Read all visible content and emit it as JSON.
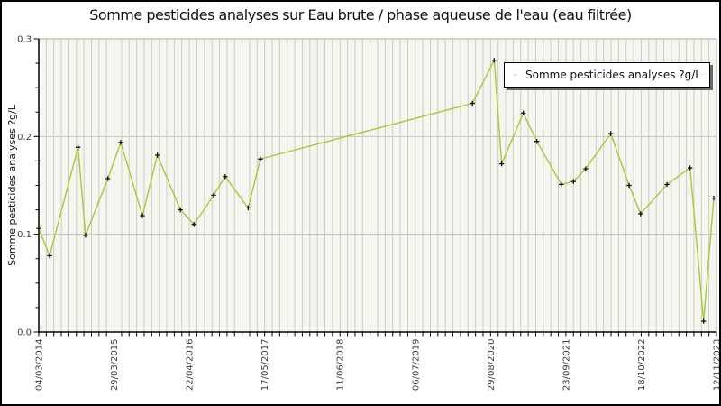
{
  "title": "Somme pesticides analyses sur Eau brute / phase aqueuse de l'eau (eau filtrée)",
  "y_axis": {
    "label": "Somme pesticides analyses ?g/L",
    "tick_labels": [
      "0.0",
      "0.1",
      "0.2",
      "0.3"
    ],
    "minor_step": 0.025
  },
  "x_axis": {
    "tick_labels": [
      "04/03/2014",
      "29/03/2015",
      "22/04/2016",
      "17/05/2017",
      "11/06/2018",
      "06/07/2019",
      "29/08/2020",
      "23/09/2021",
      "18/10/2022",
      "12/11/2023"
    ],
    "minor_ticks_per_label_interval": 10
  },
  "legend": {
    "label": "Somme pesticides analyses ?g/L",
    "position": "top-right"
  },
  "colors": {
    "line": "#a3c93a",
    "marker": "#000000",
    "plot_bg": "#f6f6f0",
    "grid_vertical": "#ccccc2",
    "grid_horizontal": "#c6c6c0",
    "spine_dark": "#000000",
    "spine_light": "#aaaaa2",
    "tick_label": "#3c3c3c",
    "legend_shadow": "#6a6a6a"
  },
  "chart_data": {
    "type": "line",
    "title": "Somme pesticides analyses sur Eau brute / phase aqueuse de l'eau (eau filtrée)",
    "xlabel": "",
    "ylabel": "Somme pesticides analyses ?g/L",
    "ylim": [
      0,
      0.3
    ],
    "y_major_ticks": [
      0,
      0.1,
      0.2,
      0.3
    ],
    "y_minor_step": 0.025,
    "x_tick_labels": [
      "04/03/2014",
      "29/03/2015",
      "22/04/2016",
      "17/05/2017",
      "11/06/2018",
      "06/07/2019",
      "29/08/2020",
      "23/09/2021",
      "18/10/2022",
      "12/11/2023"
    ],
    "grid": "vertical minor stripes + horizontal major lines",
    "legend_position": "top-right",
    "series": [
      {
        "name": "Somme pesticides analyses ?g/L",
        "color": "#a3c93a",
        "marker": "plus",
        "marker_color": "#000000",
        "x_frac": [
          0.0,
          0.016,
          0.058,
          0.069,
          0.102,
          0.121,
          0.153,
          0.175,
          0.209,
          0.229,
          0.258,
          0.275,
          0.309,
          0.327,
          0.64,
          0.672,
          0.683,
          0.715,
          0.735,
          0.771,
          0.789,
          0.807,
          0.844,
          0.871,
          0.888,
          0.927,
          0.961,
          0.981,
          0.996
        ],
        "values": [
          0.106,
          0.078,
          0.189,
          0.099,
          0.157,
          0.194,
          0.119,
          0.181,
          0.125,
          0.11,
          0.14,
          0.159,
          0.127,
          0.177,
          0.234,
          0.278,
          0.172,
          0.224,
          0.195,
          0.151,
          0.154,
          0.167,
          0.203,
          0.15,
          0.121,
          0.151,
          0.168,
          0.011,
          0.137
        ]
      }
    ]
  }
}
